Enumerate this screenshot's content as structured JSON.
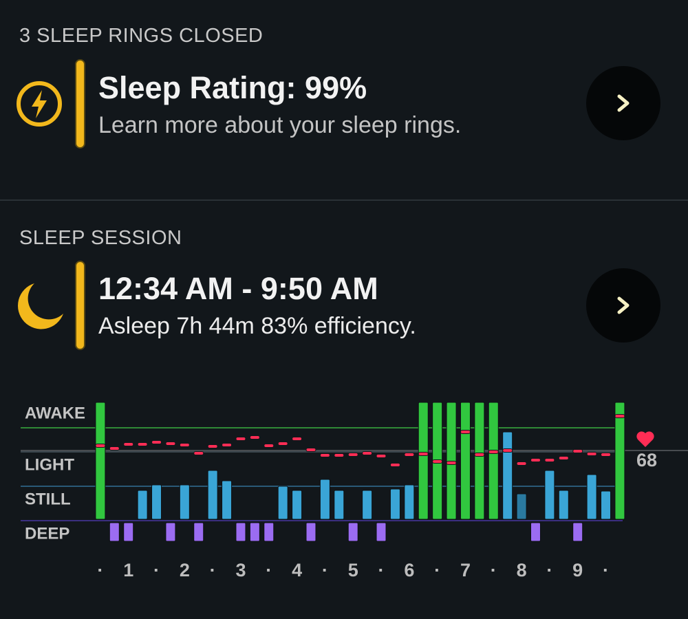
{
  "rings": {
    "heading": "3 SLEEP RINGS CLOSED",
    "title": "Sleep Rating: 99%",
    "subtitle": "Learn more about your sleep rings."
  },
  "session": {
    "heading": "SLEEP SESSION",
    "title": "12:34 AM - 9:50 AM",
    "subtitle": "Asleep 7h 44m 83% efficiency."
  },
  "chart_data": {
    "type": "bar",
    "x": [
      0.5,
      0.75,
      1,
      1.25,
      1.5,
      1.75,
      2,
      2.25,
      2.5,
      2.75,
      3,
      3.25,
      3.5,
      3.75,
      4,
      4.25,
      4.5,
      4.75,
      5,
      5.25,
      5.5,
      5.75,
      6,
      6.25,
      6.5,
      6.75,
      7,
      7.25,
      7.5,
      7.75,
      8,
      8.25,
      8.5,
      8.75,
      9,
      9.25,
      9.5,
      9.75
    ],
    "series": [
      {
        "values": [
          3.44,
          -0.6,
          -0.6,
          0.88,
          1.04,
          -0.6,
          1.04,
          -0.6,
          1.46,
          1.16,
          -0.6,
          -0.6,
          -0.6,
          1.0,
          0.88,
          -0.6,
          1.2,
          0.88,
          -0.6,
          0.88,
          -0.6,
          0.92,
          1.04,
          3.44,
          3.44,
          3.44,
          3.44,
          3.44,
          3.44,
          2.58,
          0.78,
          -0.6,
          1.46,
          0.88,
          -0.6,
          1.34,
          0.86,
          3.44
        ],
        "colors": [
          "#31c73f",
          "#9b6cf2",
          "#9b6cf2",
          "#3aa5d6",
          "#3aa5d6",
          "#9b6cf2",
          "#3aa5d6",
          "#9b6cf2",
          "#3aa5d6",
          "#3aa5d6",
          "#9b6cf2",
          "#9b6cf2",
          "#9b6cf2",
          "#3aa5d6",
          "#3aa5d6",
          "#9b6cf2",
          "#3aa5d6",
          "#3aa5d6",
          "#9b6cf2",
          "#3aa5d6",
          "#9b6cf2",
          "#3aa5d6",
          "#3aa5d6",
          "#31c73f",
          "#31c73f",
          "#31c73f",
          "#31c73f",
          "#31c73f",
          "#31c73f",
          "#3aa5d6",
          "#2a7aa0",
          "#9b6cf2",
          "#3aa5d6",
          "#3aa5d6",
          "#9b6cf2",
          "#3aa5d6",
          "#3aa5d6",
          "#31c73f"
        ]
      },
      {
        "type": "dash",
        "axis": "y2",
        "color": "#ff2d55",
        "values": [
          69.4,
          68.6,
          69.8,
          69.8,
          70.4,
          70,
          69.6,
          67.2,
          69.2,
          69.6,
          71.4,
          71.8,
          69.4,
          70,
          71.4,
          68.2,
          66.6,
          66.6,
          66.8,
          67.2,
          66.4,
          63.8,
          66.8,
          67,
          64.8,
          64.4,
          73.4,
          66.8,
          67.6,
          68,
          64.2,
          65.2,
          65.2,
          65.8,
          67.8,
          67,
          66.8,
          78
        ]
      }
    ],
    "xlim": [
      -0.92,
      9.8
    ],
    "xticks": [
      {
        "value": 0.5,
        "label": "·"
      },
      1,
      {
        "value": 1.5,
        "label": "·"
      },
      2,
      {
        "value": 2.5,
        "label": "·"
      },
      3,
      {
        "value": 3.5,
        "label": "·"
      },
      4,
      {
        "value": 4.5,
        "label": "·"
      },
      5,
      {
        "value": 5.5,
        "label": "·"
      },
      6,
      {
        "value": 6.5,
        "label": "·"
      },
      7,
      {
        "value": 7.5,
        "label": "·"
      },
      8,
      {
        "value": 8.5,
        "label": "·"
      },
      9,
      {
        "value": 9.5,
        "label": "·"
      }
    ],
    "ylim": [
      -0.9,
      3.6
    ],
    "yticks": [
      {
        "value": 2.7,
        "label": "AWAKE"
      },
      {
        "value": 2,
        "label": "LIGHT"
      },
      {
        "value": 1,
        "label": "STILL"
      },
      {
        "value": 0,
        "label": "DEEP"
      }
    ],
    "grid_colors": [
      "#2f8a36",
      "#3a464d",
      "#2a5a78",
      "#3b2f80"
    ],
    "y2lim": [
      38.6,
      83.6
    ],
    "y2ticks": [
      68
    ],
    "y2_grid_color": "#5a5f63"
  }
}
